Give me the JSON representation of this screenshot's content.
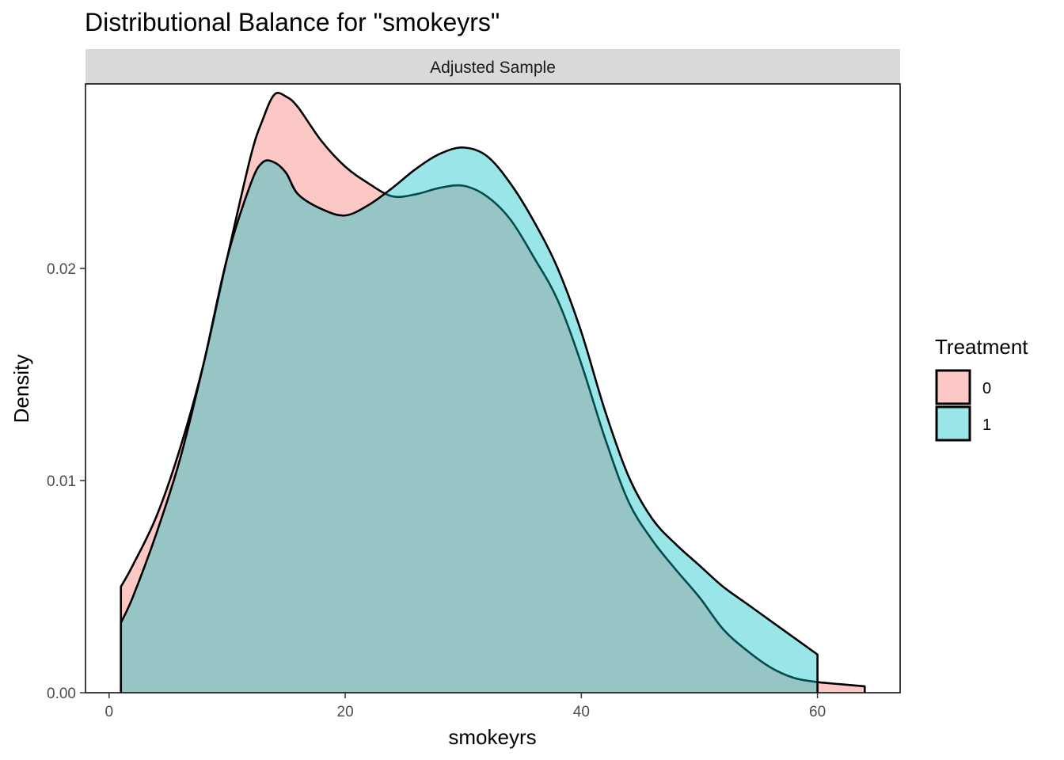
{
  "chart_data": {
    "type": "area",
    "title": "Distributional Balance for \"smokeyrs\"",
    "facet_label": "Adjusted Sample",
    "xlabel": "smokeyrs",
    "ylabel": "Density",
    "xlim": [
      -2,
      67
    ],
    "ylim": [
      0,
      0.0287
    ],
    "x_ticks": [
      0,
      20,
      40,
      60
    ],
    "x_tick_labels": [
      "0",
      "20",
      "40",
      "60"
    ],
    "y_ticks": [
      0,
      0.01,
      0.02
    ],
    "y_tick_labels": [
      "0.00",
      "0.01",
      "0.02"
    ],
    "grid": false,
    "legend": {
      "title": "Treatment",
      "position": "right",
      "entries": [
        {
          "label": "0",
          "color": "#F8766D"
        },
        {
          "label": "1",
          "color": "#00BFC4"
        }
      ]
    },
    "fill_opacity": 0.4,
    "series": [
      {
        "name": "0",
        "color": "#F8766D",
        "x": [
          1,
          2,
          4,
          6,
          8,
          10,
          12,
          13,
          14,
          15,
          16,
          18,
          20,
          22,
          24,
          26,
          28,
          30,
          32,
          34,
          36,
          38,
          40,
          42,
          44,
          46,
          48,
          50,
          52,
          54,
          56,
          58,
          60,
          62,
          64
        ],
        "y": [
          0.005,
          0.006,
          0.0083,
          0.0115,
          0.0155,
          0.0205,
          0.0253,
          0.027,
          0.0282,
          0.0281,
          0.0276,
          0.026,
          0.0248,
          0.024,
          0.0234,
          0.0235,
          0.0238,
          0.0239,
          0.0234,
          0.0223,
          0.0205,
          0.0185,
          0.0155,
          0.012,
          0.009,
          0.0072,
          0.0058,
          0.0045,
          0.003,
          0.002,
          0.0012,
          0.0007,
          0.0005,
          0.0004,
          0.0003
        ]
      },
      {
        "name": "1",
        "color": "#00BFC4",
        "x": [
          1,
          2,
          4,
          6,
          8,
          10,
          12,
          13,
          14,
          15,
          16,
          18,
          20,
          22,
          24,
          26,
          28,
          30,
          32,
          34,
          36,
          38,
          40,
          42,
          44,
          46,
          48,
          50,
          52,
          54,
          56,
          58,
          60
        ],
        "y": [
          0.0033,
          0.0045,
          0.0075,
          0.011,
          0.0155,
          0.0205,
          0.024,
          0.025,
          0.025,
          0.0245,
          0.0235,
          0.0228,
          0.0225,
          0.023,
          0.0238,
          0.0247,
          0.0254,
          0.0257,
          0.0253,
          0.024,
          0.0222,
          0.02,
          0.017,
          0.0133,
          0.0102,
          0.0082,
          0.007,
          0.006,
          0.005,
          0.0042,
          0.0034,
          0.0026,
          0.0018
        ]
      }
    ]
  }
}
